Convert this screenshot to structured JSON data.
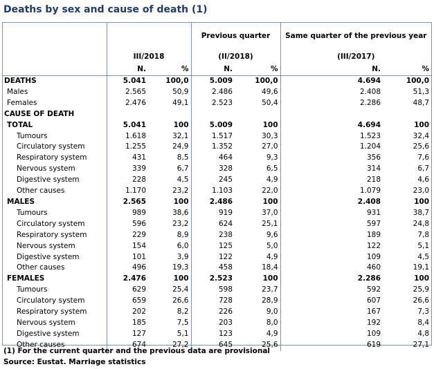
{
  "title": "Deaths by sex and cause of death (1)",
  "header": {
    "col_group_1": "III/2018",
    "col_group_2_top": "Previous quarter",
    "col_group_2_sub": "(II/2018)",
    "col_group_3_top": "Same quarter of the previous year",
    "col_group_3_sub": "(III/2017)",
    "n_label": "N.",
    "pct_label": "%"
  },
  "rows": [
    {
      "label": "DEATHS",
      "style": "bold",
      "indent": 0,
      "v": [
        "5.041",
        "100,0",
        "5.009",
        "100,0",
        "4.694",
        "100,0"
      ]
    },
    {
      "label": "Males",
      "style": "normal",
      "indent": 1,
      "v": [
        "2.565",
        "50,9",
        "2.486",
        "49,6",
        "2.408",
        "51,3"
      ]
    },
    {
      "label": "Females",
      "style": "normal",
      "indent": 1,
      "v": [
        "2.476",
        "49,1",
        "2.523",
        "50,4",
        "2.286",
        "48,7"
      ]
    },
    {
      "label": "CAUSE OF DEATH",
      "style": "bold",
      "indent": 0,
      "v": [
        "",
        "",
        "",
        "",
        "",
        ""
      ]
    },
    {
      "label": "TOTAL",
      "style": "bold",
      "indent": 1,
      "v": [
        "5.041",
        "100",
        "5.009",
        "100",
        "4.694",
        "100"
      ]
    },
    {
      "label": "Tumours",
      "style": "normal",
      "indent": 2,
      "v": [
        "1.618",
        "32,1",
        "1.517",
        "30,3",
        "1.523",
        "32,4"
      ]
    },
    {
      "label": "Circulatory system",
      "style": "normal",
      "indent": 2,
      "v": [
        "1.255",
        "24,9",
        "1.352",
        "27,0",
        "1.204",
        "25,6"
      ]
    },
    {
      "label": "Respiratory system",
      "style": "normal",
      "indent": 2,
      "v": [
        "431",
        "8,5",
        "464",
        "9,3",
        "356",
        "7,6"
      ]
    },
    {
      "label": "Nervous system",
      "style": "normal",
      "indent": 2,
      "v": [
        "339",
        "6,7",
        "328",
        "6,5",
        "314",
        "6,7"
      ]
    },
    {
      "label": "Digestive system",
      "style": "normal",
      "indent": 2,
      "v": [
        "228",
        "4,5",
        "245",
        "4,9",
        "218",
        "4,6"
      ]
    },
    {
      "label": "Other causes",
      "style": "normal",
      "indent": 2,
      "v": [
        "1.170",
        "23,2",
        "1.103",
        "22,0",
        "1.079",
        "23,0"
      ]
    },
    {
      "label": "MALES",
      "style": "bold",
      "indent": 1,
      "v": [
        "2.565",
        "100",
        "2.486",
        "100",
        "2.408",
        "100"
      ]
    },
    {
      "label": "Tumours",
      "style": "normal",
      "indent": 2,
      "v": [
        "989",
        "38,6",
        "919",
        "37,0",
        "931",
        "38,7"
      ]
    },
    {
      "label": "Circulatory system",
      "style": "normal",
      "indent": 2,
      "v": [
        "596",
        "23,2",
        "624",
        "25,1",
        "597",
        "24,8"
      ]
    },
    {
      "label": "Respiratory system",
      "style": "normal",
      "indent": 2,
      "v": [
        "229",
        "8,9",
        "238",
        "9,6",
        "189",
        "7,8"
      ]
    },
    {
      "label": "Nervous system",
      "style": "normal",
      "indent": 2,
      "v": [
        "154",
        "6,0",
        "125",
        "5,0",
        "122",
        "5,1"
      ]
    },
    {
      "label": "Digestive system",
      "style": "normal",
      "indent": 2,
      "v": [
        "101",
        "3,9",
        "122",
        "4,9",
        "109",
        "4,5"
      ]
    },
    {
      "label": "Other causes",
      "style": "normal",
      "indent": 2,
      "v": [
        "496",
        "19,3",
        "458",
        "18,4",
        "460",
        "19,1"
      ]
    },
    {
      "label": "FEMALES",
      "style": "bold",
      "indent": 1,
      "v": [
        "2.476",
        "100",
        "2.523",
        "100",
        "2.286",
        "100"
      ]
    },
    {
      "label": "Tumours",
      "style": "normal",
      "indent": 2,
      "v": [
        "629",
        "25,4",
        "598",
        "23,7",
        "592",
        "25,9"
      ]
    },
    {
      "label": "Circulatory system",
      "style": "normal",
      "indent": 2,
      "v": [
        "659",
        "26,6",
        "728",
        "28,9",
        "607",
        "26,6"
      ]
    },
    {
      "label": "Respiratory system",
      "style": "normal",
      "indent": 2,
      "v": [
        "202",
        "8,2",
        "226",
        "9,0",
        "167",
        "7,3"
      ]
    },
    {
      "label": "Nervous system",
      "style": "normal",
      "indent": 2,
      "v": [
        "185",
        "7,5",
        "203",
        "8,0",
        "192",
        "8,4"
      ]
    },
    {
      "label": "Digestive system",
      "style": "normal",
      "indent": 2,
      "v": [
        "127",
        "5,1",
        "123",
        "4,9",
        "109",
        "4,8"
      ]
    },
    {
      "label": "Other causes",
      "style": "normal",
      "indent": 2,
      "v": [
        "674",
        "27,2",
        "645",
        "25,6",
        "619",
        "27,1"
      ]
    }
  ],
  "footnote": "(1) For the current quarter and the previous data are provisional",
  "source": "Source: Eustat. Marriage statistics",
  "colors": {
    "title": "#1f3b66",
    "border": "#7a8fb8"
  }
}
